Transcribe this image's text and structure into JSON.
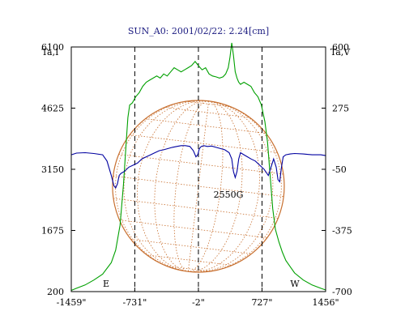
{
  "chart_data": {
    "type": "line",
    "title": "SUN_A0: 2001/02/22: 2.24[cm]",
    "left_axis_label": "Ta,I",
    "right_axis_label": "Ta,V",
    "x_ticks": [
      "-1459\"",
      "-731\"",
      "-2\"",
      "727\"",
      "1456\""
    ],
    "xlim": [
      -1459,
      1456
    ],
    "left_ylim": [
      200,
      6100
    ],
    "left_ticks": [
      200,
      1675,
      3150,
      4625,
      6100
    ],
    "right_ylim": [
      -700,
      600
    ],
    "right_ticks": [
      -700,
      -375,
      -50,
      275,
      600
    ],
    "marker_lines_x": [
      -731,
      -2,
      727
    ],
    "limb_labels": {
      "east": "E",
      "west": "W"
    },
    "annotation": {
      "text": "2550G",
      "x": 320,
      "y_left": 2540
    },
    "colors": {
      "intensity": "#00a000",
      "polarization": "#0000a0",
      "sun_grid": "#c87030",
      "frame": "#000000"
    },
    "series": [
      {
        "axis": "left",
        "color": "#00a000",
        "x": [
          -1459,
          -1400,
          -1300,
          -1200,
          -1100,
          -1000,
          -950,
          -900,
          -860,
          -830,
          -810,
          -790,
          -760,
          -720,
          -680,
          -640,
          -600,
          -560,
          -520,
          -480,
          -440,
          -400,
          -360,
          -320,
          -280,
          -240,
          -200,
          -160,
          -120,
          -80,
          -40,
          -2,
          40,
          80,
          120,
          160,
          200,
          240,
          280,
          310,
          340,
          360,
          380,
          400,
          420,
          440,
          460,
          480,
          520,
          560,
          600,
          640,
          680,
          720,
          760,
          790,
          820,
          850,
          880,
          920,
          960,
          1000,
          1050,
          1100,
          1200,
          1300,
          1400,
          1456
        ],
        "values": [
          230,
          280,
          360,
          480,
          620,
          900,
          1200,
          1800,
          2800,
          3800,
          4400,
          4700,
          4750,
          4900,
          5000,
          5150,
          5250,
          5300,
          5350,
          5400,
          5350,
          5450,
          5400,
          5500,
          5600,
          5550,
          5500,
          5550,
          5600,
          5650,
          5750,
          5650,
          5550,
          5600,
          5450,
          5400,
          5380,
          5350,
          5380,
          5450,
          5600,
          5850,
          6200,
          5900,
          5500,
          5350,
          5250,
          5200,
          5250,
          5200,
          5150,
          5000,
          4900,
          4700,
          4300,
          3800,
          3000,
          2200,
          1700,
          1400,
          1150,
          950,
          800,
          650,
          480,
          360,
          280,
          240
        ]
      },
      {
        "axis": "left",
        "color": "#0000a0",
        "x": [
          -1459,
          -1400,
          -1300,
          -1200,
          -1100,
          -1050,
          -1000,
          -970,
          -950,
          -930,
          -910,
          -890,
          -850,
          -800,
          -750,
          -700,
          -650,
          -600,
          -550,
          -500,
          -450,
          -400,
          -350,
          -300,
          -250,
          -200,
          -150,
          -100,
          -60,
          -30,
          -10,
          10,
          30,
          60,
          100,
          150,
          200,
          250,
          300,
          350,
          380,
          400,
          420,
          440,
          460,
          480,
          520,
          560,
          600,
          650,
          700,
          750,
          800,
          830,
          860,
          890,
          910,
          930,
          950,
          970,
          1000,
          1050,
          1100,
          1200,
          1300,
          1400,
          1456
        ],
        "values": [
          3500,
          3540,
          3550,
          3530,
          3500,
          3350,
          3000,
          2750,
          2700,
          2800,
          3000,
          3050,
          3100,
          3200,
          3250,
          3300,
          3400,
          3450,
          3500,
          3550,
          3600,
          3620,
          3650,
          3680,
          3700,
          3720,
          3720,
          3700,
          3600,
          3450,
          3500,
          3650,
          3700,
          3720,
          3700,
          3710,
          3680,
          3650,
          3620,
          3550,
          3400,
          3100,
          2950,
          3100,
          3400,
          3550,
          3500,
          3450,
          3400,
          3350,
          3250,
          3150,
          3000,
          3200,
          3400,
          3200,
          2900,
          2850,
          3200,
          3450,
          3500,
          3520,
          3530,
          3520,
          3500,
          3500,
          3480
        ]
      }
    ]
  }
}
